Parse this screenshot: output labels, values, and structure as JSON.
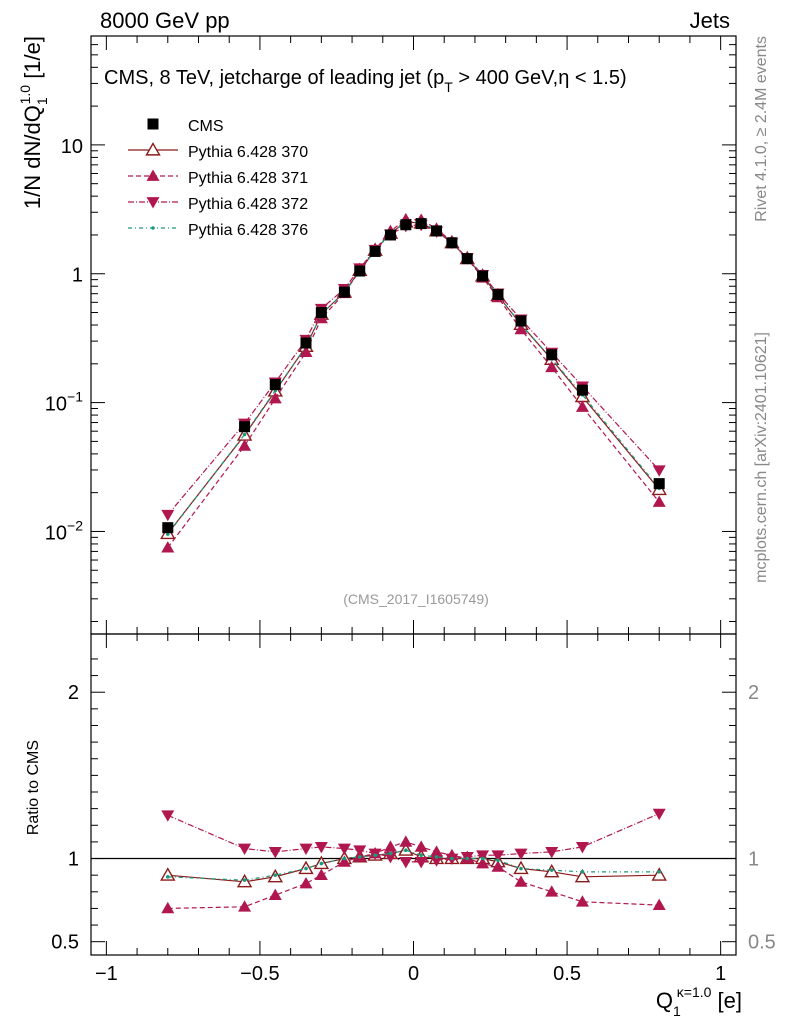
{
  "header": {
    "left_title": "8000 GeV pp",
    "right_title": "Jets"
  },
  "side_labels": {
    "rivet": "Rivet 4.1.0, ≥ 2.4M events",
    "mcplots": "mcplots.cern.ch [arXiv:2401.10621]"
  },
  "chart_data": {
    "type": "scatter",
    "title_parts": {
      "pre": "CMS, 8 TeV, jetcharge of leading jet (p",
      "sub": "T",
      "post": " > 400 GeV,η < 1.5)"
    },
    "analysis_id": "(CMS_2017_I1605749)",
    "ylabel_parts": {
      "pre": "1/N dN/dQ",
      "sub": "1",
      "sup": "1.0",
      "post": " [1/e]"
    },
    "xlabel_parts": {
      "base": "Q",
      "sub": "1",
      "sup": "κ=1.0",
      "post": " [e]"
    },
    "ratio_ylabel": "Ratio to CMS",
    "x_ticks": [
      {
        "v": -1,
        "label": "−1"
      },
      {
        "v": -0.5,
        "label": "−0.5"
      },
      {
        "v": 0,
        "label": "0"
      },
      {
        "v": 0.5,
        "label": "0.5"
      },
      {
        "v": 1,
        "label": "1"
      }
    ],
    "y_ticks": [
      {
        "v": 0.01,
        "base": "10",
        "exp": "−2"
      },
      {
        "v": 0.1,
        "base": "10",
        "exp": "−1"
      },
      {
        "v": 1,
        "base": "1",
        "exp": ""
      },
      {
        "v": 10,
        "base": "10",
        "exp": ""
      }
    ],
    "ratio_ticks": [
      {
        "v": 0.5,
        "label": "0.5"
      },
      {
        "v": 1,
        "label": "1"
      },
      {
        "v": 2,
        "label": "2"
      }
    ],
    "xlim": [
      -1.05,
      1.05
    ],
    "ylim": [
      0.0016,
      70
    ],
    "ratio_ylim": [
      0.42,
      2.35
    ],
    "x": [
      -0.8,
      -0.55,
      -0.45,
      -0.35,
      -0.3,
      -0.225,
      -0.175,
      -0.125,
      -0.075,
      -0.025,
      0.025,
      0.075,
      0.125,
      0.175,
      0.225,
      0.275,
      0.35,
      0.45,
      0.55,
      0.8
    ],
    "cms": [
      0.0107,
      0.065,
      0.138,
      0.29,
      0.5,
      0.72,
      1.05,
      1.49,
      2.0,
      2.4,
      2.45,
      2.15,
      1.74,
      1.31,
      0.96,
      0.69,
      0.43,
      0.235,
      0.125,
      0.0235
    ],
    "series": [
      {
        "name": "Pythia 6.428 370",
        "color": "#8b1a1a",
        "marker": "triangle-up-open",
        "dash": "",
        "ratio": [
          0.9,
          0.86,
          0.89,
          0.94,
          0.97,
          1.0,
          1.01,
          1.02,
          1.03,
          1.05,
          1.01,
          1.0,
          1.0,
          1.0,
          1.0,
          0.98,
          0.94,
          0.92,
          0.89,
          0.9
        ]
      },
      {
        "name": "Pythia 6.428 371",
        "color": "#b0174e",
        "marker": "triangle-up",
        "dash": "5,3",
        "ratio": [
          0.7,
          0.71,
          0.78,
          0.85,
          0.9,
          0.98,
          1.01,
          1.03,
          1.07,
          1.1,
          1.07,
          1.04,
          1.02,
          1.0,
          0.97,
          0.95,
          0.86,
          0.8,
          0.74,
          0.72
        ]
      },
      {
        "name": "Pythia 6.428 372",
        "color": "#b0174e",
        "marker": "triangle-down",
        "dash": "6,2,1,2",
        "ratio": [
          1.26,
          1.06,
          1.04,
          1.06,
          1.07,
          1.06,
          1.05,
          1.03,
          1.01,
          0.98,
          0.98,
          0.99,
          1.0,
          1.01,
          1.02,
          1.02,
          1.03,
          1.04,
          1.07,
          1.27
        ]
      },
      {
        "name": "Pythia 6.428 376",
        "color": "#1a9a7a",
        "marker": "dot",
        "dash": "4,3,1,3",
        "ratio": [
          0.89,
          0.87,
          0.9,
          0.94,
          0.97,
          1.0,
          1.01,
          1.02,
          1.03,
          1.05,
          1.02,
          1.01,
          1.0,
          1.0,
          1.0,
          0.99,
          0.94,
          0.93,
          0.92,
          0.92
        ]
      }
    ],
    "legend": {
      "cms_label": "CMS",
      "position": "top-left"
    }
  }
}
